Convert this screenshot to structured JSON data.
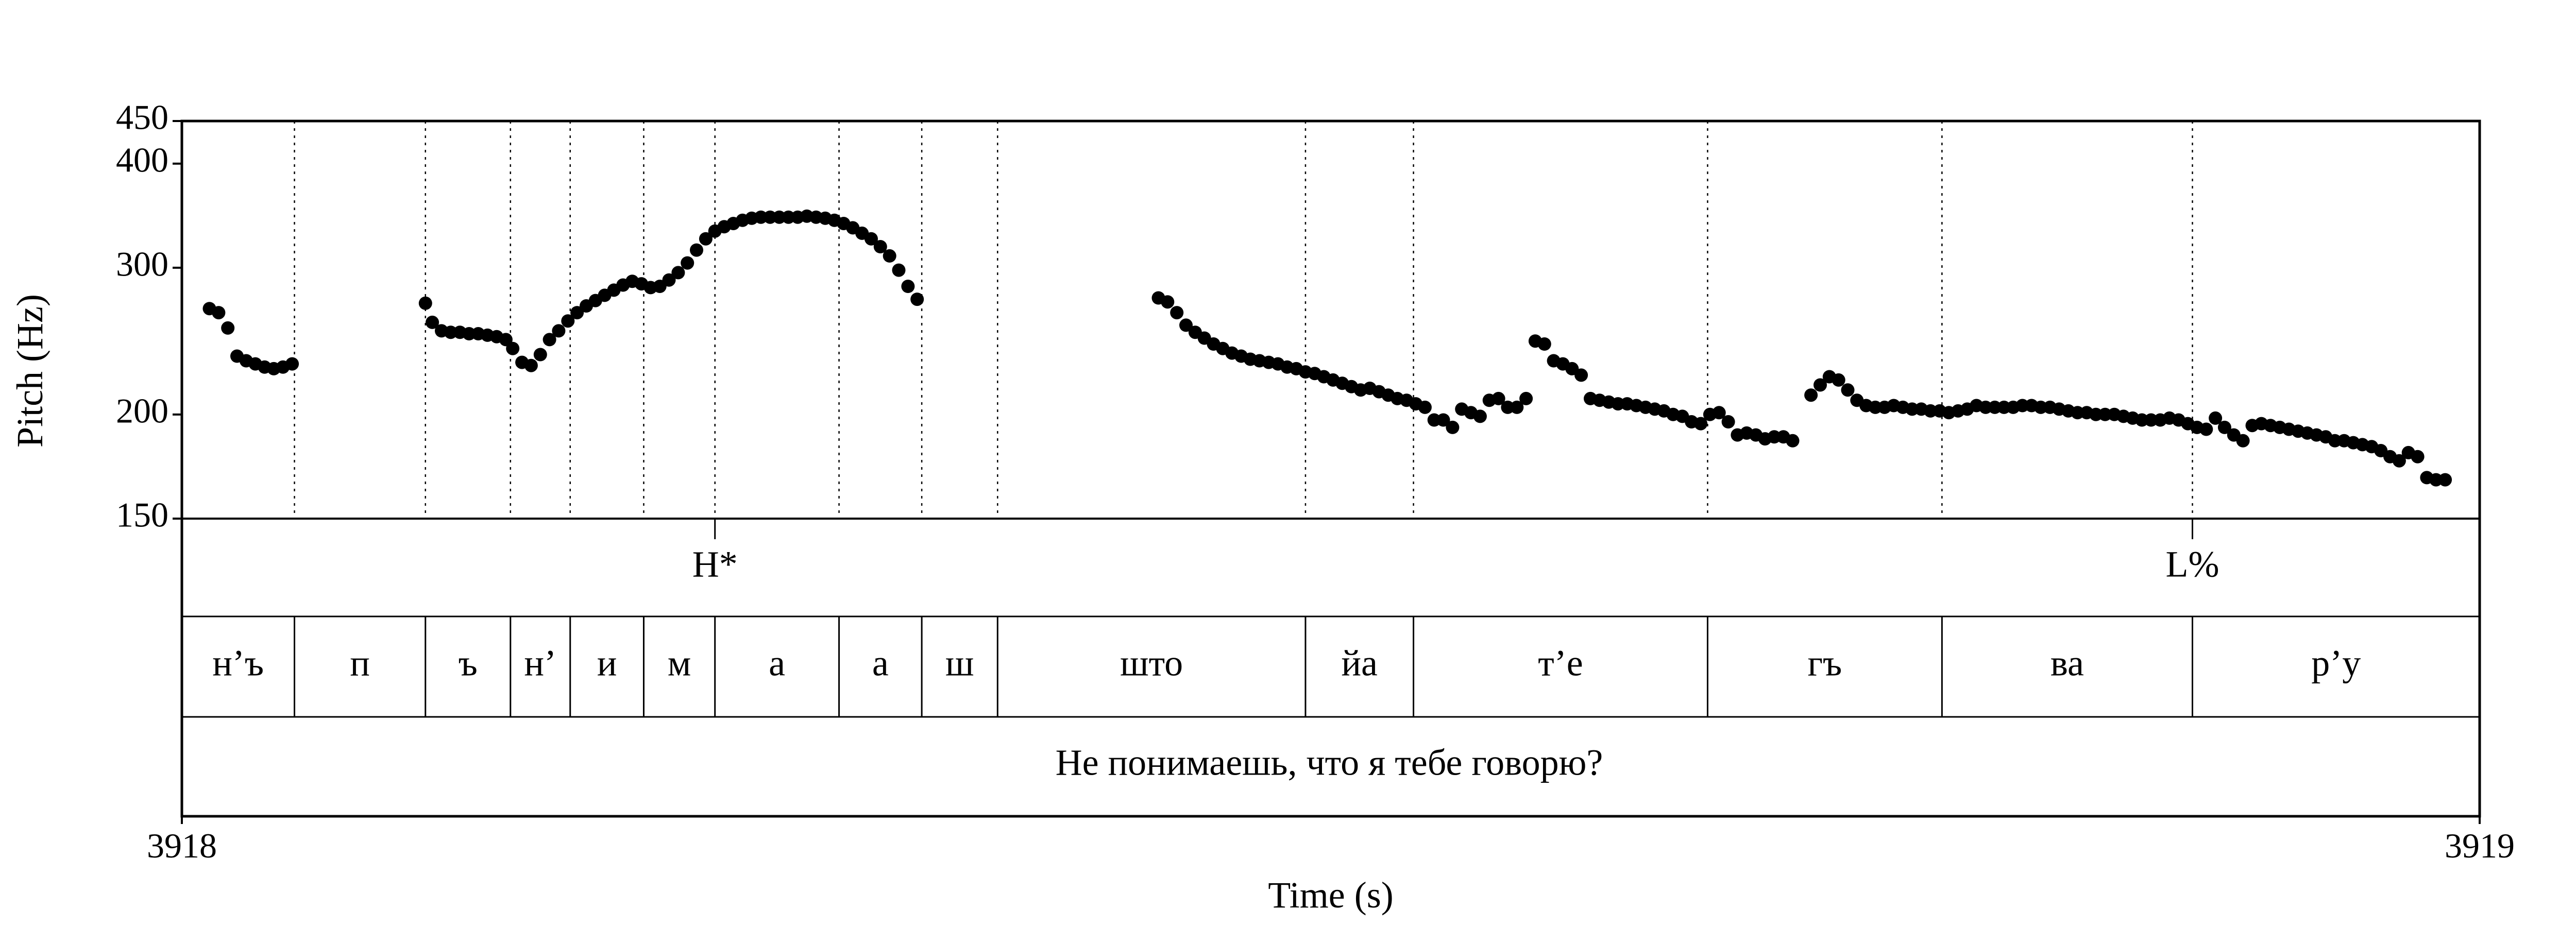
{
  "chart_data": {
    "type": "scatter",
    "title": "",
    "xlabel": "Time (s)",
    "ylabel": "Pitch (Hz)",
    "xlim": [
      3918,
      3919
    ],
    "ylim": [
      150,
      450
    ],
    "y_scale": "log",
    "x_ticks": [
      "3918",
      "3919"
    ],
    "y_ticks": [
      {
        "value": 450,
        "label": "450"
      },
      {
        "value": 400,
        "label": "400"
      },
      {
        "value": 300,
        "label": "300"
      },
      {
        "value": 200,
        "label": "200"
      },
      {
        "value": 150,
        "label": "150"
      }
    ],
    "boundaries": [
      3918.049,
      3918.106,
      3918.143,
      3918.169,
      3918.201,
      3918.232,
      3918.286,
      3918.322,
      3918.355,
      3918.489,
      3918.536,
      3918.664,
      3918.766,
      3918.875
    ],
    "tiers": {
      "tones": [
        {
          "t": 3918.232,
          "label": "H*"
        },
        {
          "t": 3918.875,
          "label": "L%"
        }
      ],
      "segments": [
        {
          "start": 3918.0,
          "end": 3918.049,
          "label": "н’ъ"
        },
        {
          "start": 3918.049,
          "end": 3918.106,
          "label": "п"
        },
        {
          "start": 3918.106,
          "end": 3918.143,
          "label": "ъ"
        },
        {
          "start": 3918.143,
          "end": 3918.169,
          "label": "н’"
        },
        {
          "start": 3918.169,
          "end": 3918.201,
          "label": "и"
        },
        {
          "start": 3918.201,
          "end": 3918.232,
          "label": "м"
        },
        {
          "start": 3918.232,
          "end": 3918.286,
          "label": "а"
        },
        {
          "start": 3918.286,
          "end": 3918.322,
          "label": "а"
        },
        {
          "start": 3918.322,
          "end": 3918.355,
          "label": "ш"
        },
        {
          "start": 3918.355,
          "end": 3918.489,
          "label": "што"
        },
        {
          "start": 3918.489,
          "end": 3918.536,
          "label": "йа"
        },
        {
          "start": 3918.536,
          "end": 3918.664,
          "label": "т’е"
        },
        {
          "start": 3918.664,
          "end": 3918.766,
          "label": "гъ"
        },
        {
          "start": 3918.766,
          "end": 3918.875,
          "label": "ва"
        },
        {
          "start": 3918.875,
          "end": 3919.0,
          "label": "р’у"
        }
      ],
      "sentence": "Не понимаешь, что я тебе говорю?"
    },
    "series": [
      {
        "points": [
          [
            3918.012,
            268
          ],
          [
            3918.016,
            265
          ],
          [
            3918.02,
            254
          ],
          [
            3918.024,
            235
          ],
          [
            3918.028,
            232
          ],
          [
            3918.032,
            230
          ],
          [
            3918.036,
            228
          ],
          [
            3918.04,
            227
          ],
          [
            3918.044,
            228
          ],
          [
            3918.048,
            230
          ],
          [
            3918.106,
            272
          ],
          [
            3918.109,
            258
          ],
          [
            3918.113,
            252
          ],
          [
            3918.117,
            251
          ],
          [
            3918.121,
            251
          ],
          [
            3918.125,
            250
          ],
          [
            3918.129,
            250
          ],
          [
            3918.133,
            249
          ],
          [
            3918.137,
            248
          ],
          [
            3918.141,
            246
          ],
          [
            3918.144,
            240
          ],
          [
            3918.148,
            231
          ],
          [
            3918.152,
            229
          ],
          [
            3918.156,
            236
          ],
          [
            3918.16,
            246
          ],
          [
            3918.164,
            252
          ],
          [
            3918.168,
            259
          ],
          [
            3918.172,
            265
          ],
          [
            3918.176,
            270
          ],
          [
            3918.18,
            274
          ],
          [
            3918.184,
            278
          ],
          [
            3918.188,
            282
          ],
          [
            3918.192,
            286
          ],
          [
            3918.196,
            289
          ],
          [
            3918.2,
            287
          ],
          [
            3918.204,
            284
          ],
          [
            3918.208,
            285
          ],
          [
            3918.212,
            290
          ],
          [
            3918.216,
            296
          ],
          [
            3918.22,
            304
          ],
          [
            3918.224,
            315
          ],
          [
            3918.228,
            325
          ],
          [
            3918.232,
            332
          ],
          [
            3918.236,
            336
          ],
          [
            3918.24,
            339
          ],
          [
            3918.244,
            342
          ],
          [
            3918.248,
            344
          ],
          [
            3918.252,
            345
          ],
          [
            3918.256,
            345
          ],
          [
            3918.26,
            345
          ],
          [
            3918.264,
            345
          ],
          [
            3918.268,
            345
          ],
          [
            3918.272,
            346
          ],
          [
            3918.276,
            345
          ],
          [
            3918.28,
            344
          ],
          [
            3918.284,
            342
          ],
          [
            3918.288,
            339
          ],
          [
            3918.292,
            335
          ],
          [
            3918.296,
            330
          ],
          [
            3918.3,
            325
          ],
          [
            3918.304,
            318
          ],
          [
            3918.308,
            310
          ],
          [
            3918.312,
            298
          ],
          [
            3918.316,
            285
          ],
          [
            3918.32,
            275
          ],
          [
            3918.425,
            276
          ],
          [
            3918.429,
            273
          ],
          [
            3918.433,
            265
          ],
          [
            3918.437,
            256
          ],
          [
            3918.441,
            251
          ],
          [
            3918.445,
            247
          ],
          [
            3918.449,
            243
          ],
          [
            3918.453,
            240
          ],
          [
            3918.457,
            237
          ],
          [
            3918.461,
            235
          ],
          [
            3918.465,
            233
          ],
          [
            3918.469,
            232
          ],
          [
            3918.473,
            231
          ],
          [
            3918.477,
            230
          ],
          [
            3918.481,
            228
          ],
          [
            3918.485,
            227
          ],
          [
            3918.489,
            225
          ],
          [
            3918.493,
            224
          ],
          [
            3918.497,
            222
          ],
          [
            3918.501,
            220
          ],
          [
            3918.505,
            218
          ],
          [
            3918.509,
            216
          ],
          [
            3918.513,
            214
          ],
          [
            3918.517,
            215
          ],
          [
            3918.521,
            213
          ],
          [
            3918.525,
            211
          ],
          [
            3918.529,
            209
          ],
          [
            3918.533,
            208
          ],
          [
            3918.537,
            206
          ],
          [
            3918.541,
            204
          ],
          [
            3918.545,
            197
          ],
          [
            3918.549,
            197
          ],
          [
            3918.553,
            193
          ],
          [
            3918.557,
            203
          ],
          [
            3918.561,
            201
          ],
          [
            3918.565,
            199
          ],
          [
            3918.569,
            208
          ],
          [
            3918.573,
            209
          ],
          [
            3918.577,
            204
          ],
          [
            3918.581,
            204
          ],
          [
            3918.585,
            209
          ],
          [
            3918.589,
            245
          ],
          [
            3918.593,
            243
          ],
          [
            3918.597,
            232
          ],
          [
            3918.601,
            230
          ],
          [
            3918.605,
            227
          ],
          [
            3918.609,
            223
          ],
          [
            3918.613,
            209
          ],
          [
            3918.617,
            208
          ],
          [
            3918.621,
            207
          ],
          [
            3918.625,
            206
          ],
          [
            3918.629,
            206
          ],
          [
            3918.633,
            205
          ],
          [
            3918.637,
            204
          ],
          [
            3918.641,
            203
          ],
          [
            3918.645,
            202
          ],
          [
            3918.649,
            200
          ],
          [
            3918.653,
            199
          ],
          [
            3918.657,
            196
          ],
          [
            3918.661,
            195
          ],
          [
            3918.665,
            200
          ],
          [
            3918.669,
            201
          ],
          [
            3918.673,
            196
          ],
          [
            3918.677,
            189
          ],
          [
            3918.681,
            190
          ],
          [
            3918.685,
            189
          ],
          [
            3918.689,
            187
          ],
          [
            3918.693,
            188
          ],
          [
            3918.697,
            188
          ],
          [
            3918.701,
            186
          ],
          [
            3918.709,
            211
          ],
          [
            3918.713,
            217
          ],
          [
            3918.717,
            222
          ],
          [
            3918.721,
            220
          ],
          [
            3918.725,
            214
          ],
          [
            3918.729,
            208
          ],
          [
            3918.733,
            205
          ],
          [
            3918.737,
            204
          ],
          [
            3918.741,
            204
          ],
          [
            3918.745,
            205
          ],
          [
            3918.749,
            204
          ],
          [
            3918.753,
            203
          ],
          [
            3918.757,
            203
          ],
          [
            3918.761,
            202
          ],
          [
            3918.765,
            202
          ],
          [
            3918.769,
            201
          ],
          [
            3918.773,
            202
          ],
          [
            3918.777,
            203
          ],
          [
            3918.781,
            205
          ],
          [
            3918.785,
            204
          ],
          [
            3918.789,
            204
          ],
          [
            3918.793,
            204
          ],
          [
            3918.797,
            204
          ],
          [
            3918.801,
            205
          ],
          [
            3918.805,
            205
          ],
          [
            3918.809,
            204
          ],
          [
            3918.813,
            204
          ],
          [
            3918.817,
            203
          ],
          [
            3918.821,
            202
          ],
          [
            3918.825,
            201
          ],
          [
            3918.829,
            201
          ],
          [
            3918.833,
            200
          ],
          [
            3918.837,
            200
          ],
          [
            3918.841,
            200
          ],
          [
            3918.845,
            199
          ],
          [
            3918.849,
            198
          ],
          [
            3918.853,
            197
          ],
          [
            3918.857,
            197
          ],
          [
            3918.861,
            197
          ],
          [
            3918.865,
            198
          ],
          [
            3918.869,
            197
          ],
          [
            3918.873,
            195
          ],
          [
            3918.877,
            193
          ],
          [
            3918.881,
            192
          ],
          [
            3918.885,
            198
          ],
          [
            3918.889,
            193
          ],
          [
            3918.893,
            189
          ],
          [
            3918.897,
            186
          ],
          [
            3918.901,
            194
          ],
          [
            3918.905,
            195
          ],
          [
            3918.909,
            194
          ],
          [
            3918.913,
            193
          ],
          [
            3918.917,
            192
          ],
          [
            3918.921,
            191
          ],
          [
            3918.925,
            190
          ],
          [
            3918.929,
            189
          ],
          [
            3918.933,
            188
          ],
          [
            3918.937,
            186
          ],
          [
            3918.941,
            186
          ],
          [
            3918.945,
            185
          ],
          [
            3918.949,
            184
          ],
          [
            3918.953,
            183
          ],
          [
            3918.957,
            181
          ],
          [
            3918.961,
            178
          ],
          [
            3918.965,
            176
          ],
          [
            3918.969,
            180
          ],
          [
            3918.973,
            178
          ],
          [
            3918.977,
            168
          ],
          [
            3918.981,
            167
          ],
          [
            3918.985,
            167
          ]
        ]
      }
    ]
  }
}
